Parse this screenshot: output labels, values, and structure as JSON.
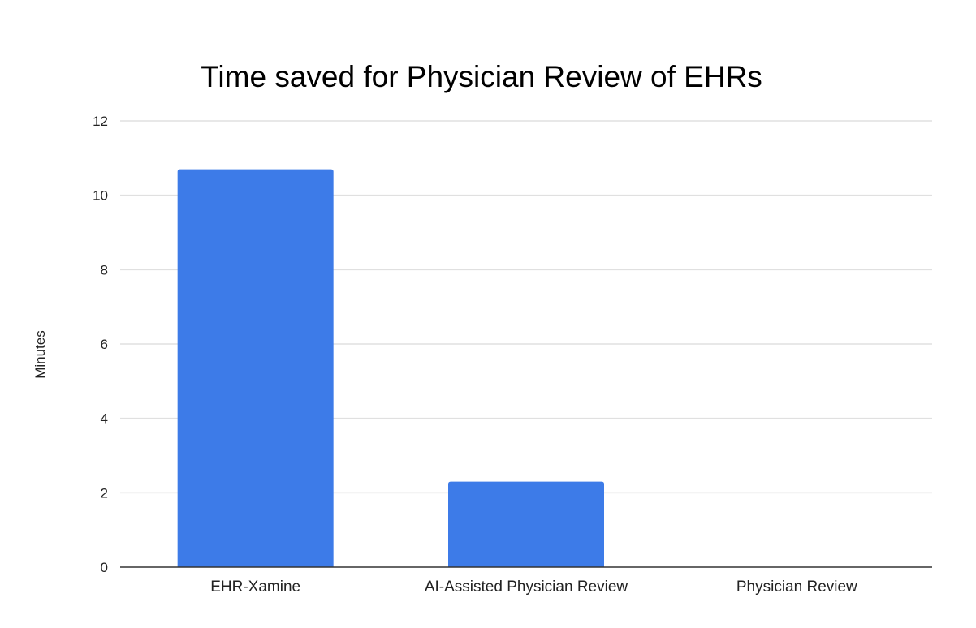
{
  "chart_data": {
    "type": "bar",
    "title": "Time saved for Physician Review of EHRs",
    "xlabel": "",
    "ylabel": "Minutes",
    "categories": [
      "EHR-Xamine",
      "AI-Assisted Physician Review",
      "Physician Review"
    ],
    "values": [
      10.7,
      2.3,
      0
    ],
    "ylim": [
      0,
      12
    ],
    "yticks": [
      0,
      2,
      4,
      6,
      8,
      10,
      12
    ],
    "grid": true,
    "legend": "none",
    "colors": {
      "bar": "#3d7be8",
      "grid": "#e0e0e0",
      "axis": "#333333"
    }
  }
}
